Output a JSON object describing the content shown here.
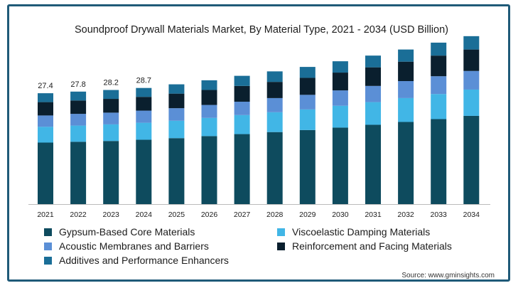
{
  "chart_data": {
    "type": "bar",
    "stacked": true,
    "title": "Soundproof Drywall Materials Market, By Material Type, 2021 - 2034 (USD Billion)",
    "categories": [
      "2021",
      "2022",
      "2023",
      "2024",
      "2025",
      "2026",
      "2027",
      "2028",
      "2029",
      "2030",
      "2031",
      "2032",
      "2033",
      "2034"
    ],
    "series": [
      {
        "name": "Gypsum-Based Core Materials",
        "color": "#0e4b5e",
        "values": [
          15.2,
          15.4,
          15.6,
          15.9,
          16.3,
          16.8,
          17.3,
          17.8,
          18.3,
          18.9,
          19.6,
          20.3,
          21.0,
          21.8
        ]
      },
      {
        "name": "Viscoelastic Damping Materials",
        "color": "#41b6e6",
        "values": [
          3.9,
          4.0,
          4.1,
          4.2,
          4.3,
          4.5,
          4.7,
          4.9,
          5.1,
          5.4,
          5.6,
          5.9,
          6.2,
          6.5
        ]
      },
      {
        "name": "Acoustic Membranes and Barriers",
        "color": "#5b8fd6",
        "values": [
          2.8,
          2.9,
          2.9,
          3.0,
          3.1,
          3.2,
          3.3,
          3.5,
          3.6,
          3.8,
          4.0,
          4.2,
          4.4,
          4.6
        ]
      },
      {
        "name": "Reinforcement and Facing Materials",
        "color": "#0a1f2e",
        "values": [
          3.3,
          3.3,
          3.4,
          3.4,
          3.6,
          3.7,
          3.9,
          4.0,
          4.2,
          4.4,
          4.6,
          4.8,
          5.1,
          5.3
        ]
      },
      {
        "name": "Additives and Performance Enhancers",
        "color": "#1a6e97",
        "values": [
          2.2,
          2.2,
          2.2,
          2.2,
          2.3,
          2.4,
          2.5,
          2.6,
          2.7,
          2.8,
          2.9,
          3.0,
          3.2,
          3.3
        ]
      }
    ],
    "data_labels": [
      "27.4",
      "27.8",
      "28.2",
      "28.7"
    ],
    "ylim": [
      0,
      42
    ],
    "grid": false,
    "legend_position": "bottom"
  },
  "source": "Source: www.gminsights.com"
}
